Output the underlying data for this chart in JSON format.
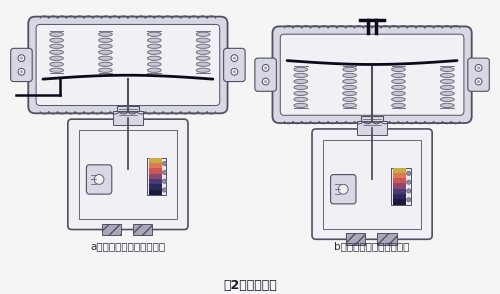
{
  "title": "图2、执行机构",
  "label_a": "a、反作用与阀构成气开式",
  "label_b": "b、正作用与阀构成气关式",
  "bg_color": "#f5f5f5",
  "line_color": "#505060",
  "body_fill": "#d8d8e4",
  "white_fill": "#f0f0f5",
  "spring_color": "#909098",
  "title_fontsize": 9,
  "label_fontsize": 7.5
}
